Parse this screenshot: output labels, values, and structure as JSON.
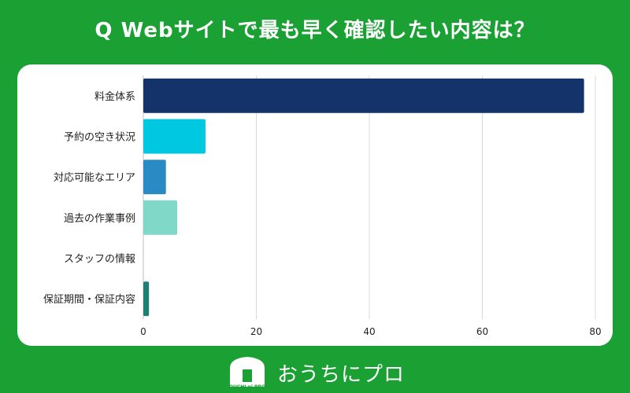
{
  "title": "Q Webサイトで最も早く確認したい内容は？",
  "footer": {
    "logo_text": "おうちにプロ",
    "logo_mark_text": "OUCHI ni PRO"
  },
  "colors": {
    "background": "#1aa033",
    "card": "#ffffff",
    "grid": "#d9d9d9",
    "axis_text": "#222222"
  },
  "chart_data": {
    "type": "bar",
    "orientation": "horizontal",
    "categories": [
      "料金体系",
      "予約の空き状況",
      "対応可能なエリア",
      "過去の作業事例",
      "スタッフの情報",
      "保証期間・保証内容"
    ],
    "values": [
      78,
      11,
      4,
      6,
      0,
      1
    ],
    "bar_colors": [
      "#14336b",
      "#00c8e0",
      "#2a8ac4",
      "#7fd8c8",
      "#cccccc",
      "#1e7f76"
    ],
    "xticks": [
      0,
      20,
      40,
      60,
      80
    ],
    "xlim": [
      0,
      80
    ],
    "grid": true,
    "title": "",
    "xlabel": "",
    "ylabel": ""
  }
}
